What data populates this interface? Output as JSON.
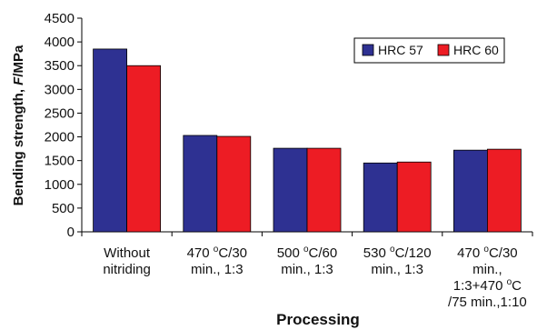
{
  "chart_data": {
    "type": "bar",
    "title": "",
    "xlabel": "Processing",
    "ylabel_main": "Bending strength, ",
    "ylabel_italic": "F",
    "ylabel_unit": "/MPa",
    "ylim": [
      0,
      4500
    ],
    "yticks": [
      0,
      500,
      1000,
      1500,
      2000,
      2500,
      3000,
      3500,
      4000,
      4500
    ],
    "grid": false,
    "legend_position": "top-right",
    "categories": [
      [
        "Without",
        "nitriding"
      ],
      [
        "470 °C/30",
        "min., 1:3"
      ],
      [
        "500 °C/60",
        "min., 1:3"
      ],
      [
        "530 °C/120",
        "min., 1:3"
      ],
      [
        "470 °C/30",
        "min.,",
        "1:3+470 °C",
        "/75 min.,1:10"
      ]
    ],
    "series": [
      {
        "name": "HRC 57",
        "color": "#2e3192",
        "values": [
          3850,
          2030,
          1760,
          1450,
          1720
        ]
      },
      {
        "name": "HRC 60",
        "color": "#ed1c24",
        "values": [
          3500,
          2010,
          1760,
          1470,
          1740
        ]
      }
    ]
  }
}
